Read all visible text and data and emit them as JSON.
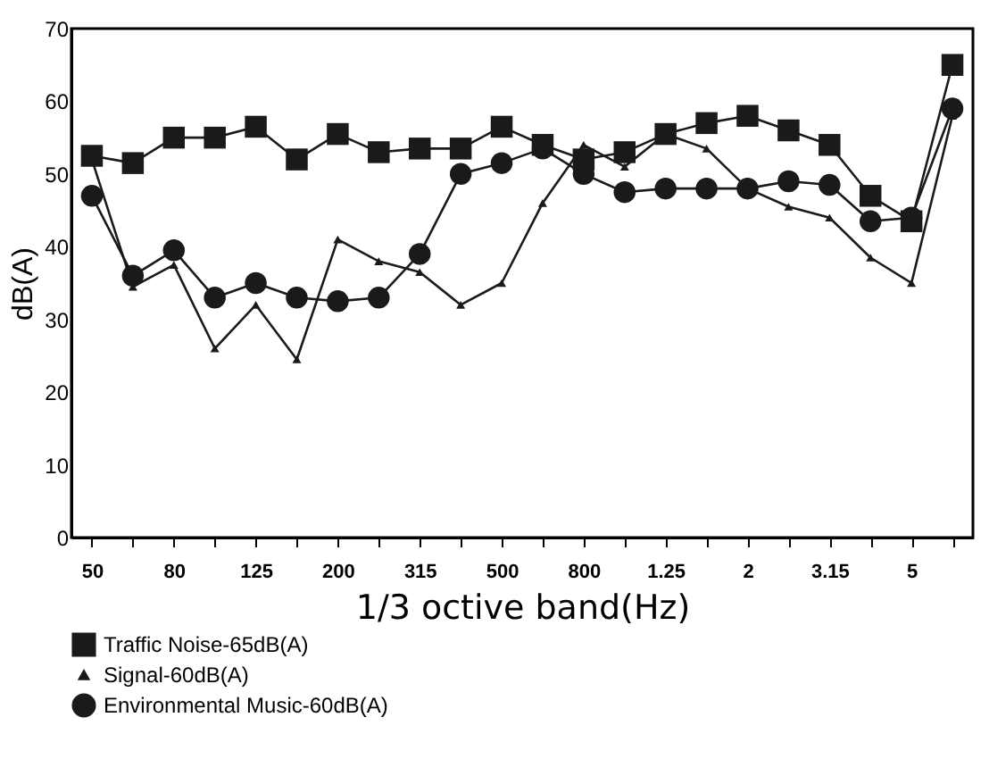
{
  "chart_data": {
    "type": "line",
    "xlabel": "1/3 octive band(Hz)",
    "ylabel": "dB(A)",
    "categories": [
      "50",
      null,
      "80",
      null,
      "125",
      null,
      "200",
      null,
      "315",
      null,
      "500",
      null,
      "800",
      null,
      "1.25",
      null,
      "2",
      null,
      "3.15",
      null,
      "5",
      null
    ],
    "ylim": [
      0,
      70
    ],
    "yticks": [
      0,
      10,
      20,
      30,
      40,
      50,
      60,
      70
    ],
    "grid": false,
    "legend": "bottom",
    "series": [
      {
        "name": "Traffic Noise-65dB(A)",
        "color": "#1a1a1a",
        "marker": "square",
        "values": [
          52.5,
          51.5,
          55,
          55,
          56.5,
          52,
          55.5,
          53,
          53.5,
          53.5,
          56.5,
          54,
          52,
          53,
          55.5,
          57,
          58,
          56,
          54,
          47,
          43.5,
          65
        ]
      },
      {
        "name": "Signal-60dB(A)",
        "color": "#1a1a1a",
        "marker": "triangle",
        "values": [
          52,
          34.5,
          37.5,
          26,
          32,
          24.5,
          41,
          38,
          36.5,
          32,
          35,
          46,
          54,
          51,
          55.5,
          53.5,
          48,
          45.5,
          44,
          38.5,
          35,
          58
        ]
      },
      {
        "name": "Environmental Music-60dB(A)",
        "color": "#1a1a1a",
        "marker": "circle",
        "values": [
          47,
          36,
          39.5,
          33,
          35,
          33,
          32.5,
          33,
          39,
          50,
          51.5,
          53.5,
          50,
          47.5,
          48,
          48,
          48,
          49,
          48.5,
          43.5,
          44,
          59
        ]
      }
    ]
  }
}
